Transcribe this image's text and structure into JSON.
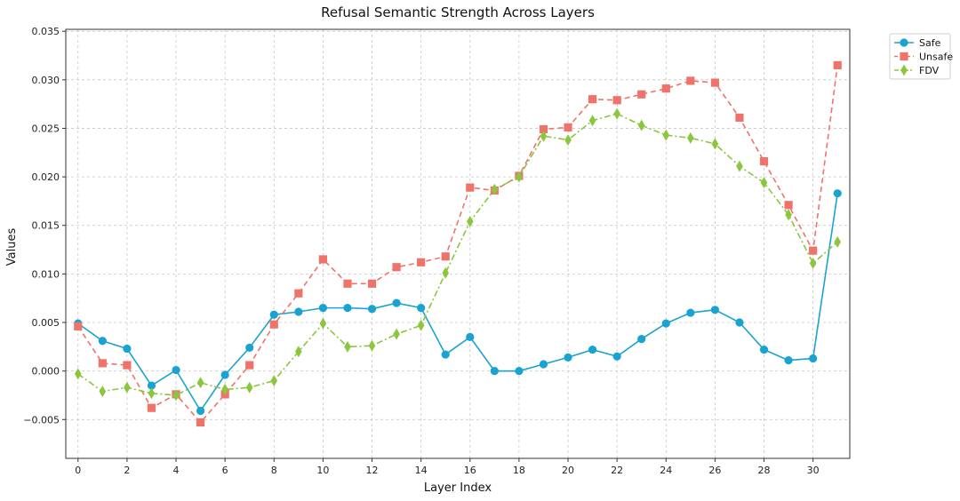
{
  "chart_data": {
    "type": "line",
    "title": "Refusal Semantic Strength Across Layers",
    "xlabel": "Layer Index",
    "ylabel": "Values",
    "x": [
      0,
      1,
      2,
      3,
      4,
      5,
      6,
      7,
      8,
      9,
      10,
      11,
      12,
      13,
      14,
      15,
      16,
      17,
      18,
      19,
      20,
      21,
      22,
      23,
      24,
      25,
      26,
      27,
      28,
      29,
      30,
      31
    ],
    "xlim": [
      -0.5,
      31.5
    ],
    "ylim": [
      -0.009,
      0.0352
    ],
    "x_ticks": [
      0,
      2,
      4,
      6,
      8,
      10,
      12,
      14,
      16,
      18,
      20,
      22,
      24,
      26,
      28,
      30
    ],
    "y_ticks": [
      -0.005,
      0.0,
      0.005,
      0.01,
      0.015,
      0.02,
      0.025,
      0.03,
      0.035
    ],
    "y_tick_labels": [
      "−0.005",
      "0.000",
      "0.005",
      "0.010",
      "0.015",
      "0.020",
      "0.025",
      "0.030",
      "0.035"
    ],
    "grid": true,
    "legend_position": "outside top-right",
    "series": [
      {
        "name": "Safe",
        "color": "#1aa3d1",
        "marker": "circle",
        "linestyle": "solid",
        "values": [
          0.0049,
          0.0031,
          0.0023,
          -0.0015,
          0.0001,
          -0.0041,
          -0.0004,
          0.0024,
          0.0058,
          0.0061,
          0.0065,
          0.0065,
          0.0064,
          0.007,
          0.0065,
          0.0017,
          0.0035,
          0.0,
          0.0,
          0.0007,
          0.0014,
          0.0022,
          0.0015,
          0.0033,
          0.0049,
          0.006,
          0.0063,
          0.005,
          0.0022,
          0.0011,
          0.0013,
          0.0183
        ]
      },
      {
        "name": "Unsafe",
        "color": "#f0736b",
        "marker": "square",
        "linestyle": "dashed",
        "values": [
          0.0046,
          0.0008,
          0.0006,
          -0.0038,
          -0.0024,
          -0.0053,
          -0.0024,
          0.0006,
          0.0048,
          0.008,
          0.0115,
          0.009,
          0.009,
          0.0107,
          0.0112,
          0.0118,
          0.0189,
          0.0186,
          0.0201,
          0.0249,
          0.0251,
          0.028,
          0.0279,
          0.0285,
          0.0291,
          0.0299,
          0.0297,
          0.0261,
          0.0216,
          0.0171,
          0.0124,
          0.0315
        ]
      },
      {
        "name": "FDV",
        "color": "#8bc63e",
        "marker": "diamond",
        "linestyle": "dashdot",
        "values": [
          -0.0003,
          -0.0021,
          -0.0017,
          -0.0023,
          -0.0025,
          -0.0012,
          -0.0019,
          -0.0017,
          -0.001,
          0.002,
          0.0049,
          0.0025,
          0.0026,
          0.0038,
          0.0047,
          0.0101,
          0.0154,
          0.0187,
          0.02,
          0.0242,
          0.0238,
          0.0258,
          0.0265,
          0.0253,
          0.0243,
          0.024,
          0.0234,
          0.0211,
          0.0194,
          0.0161,
          0.0111,
          0.0133
        ]
      }
    ]
  }
}
